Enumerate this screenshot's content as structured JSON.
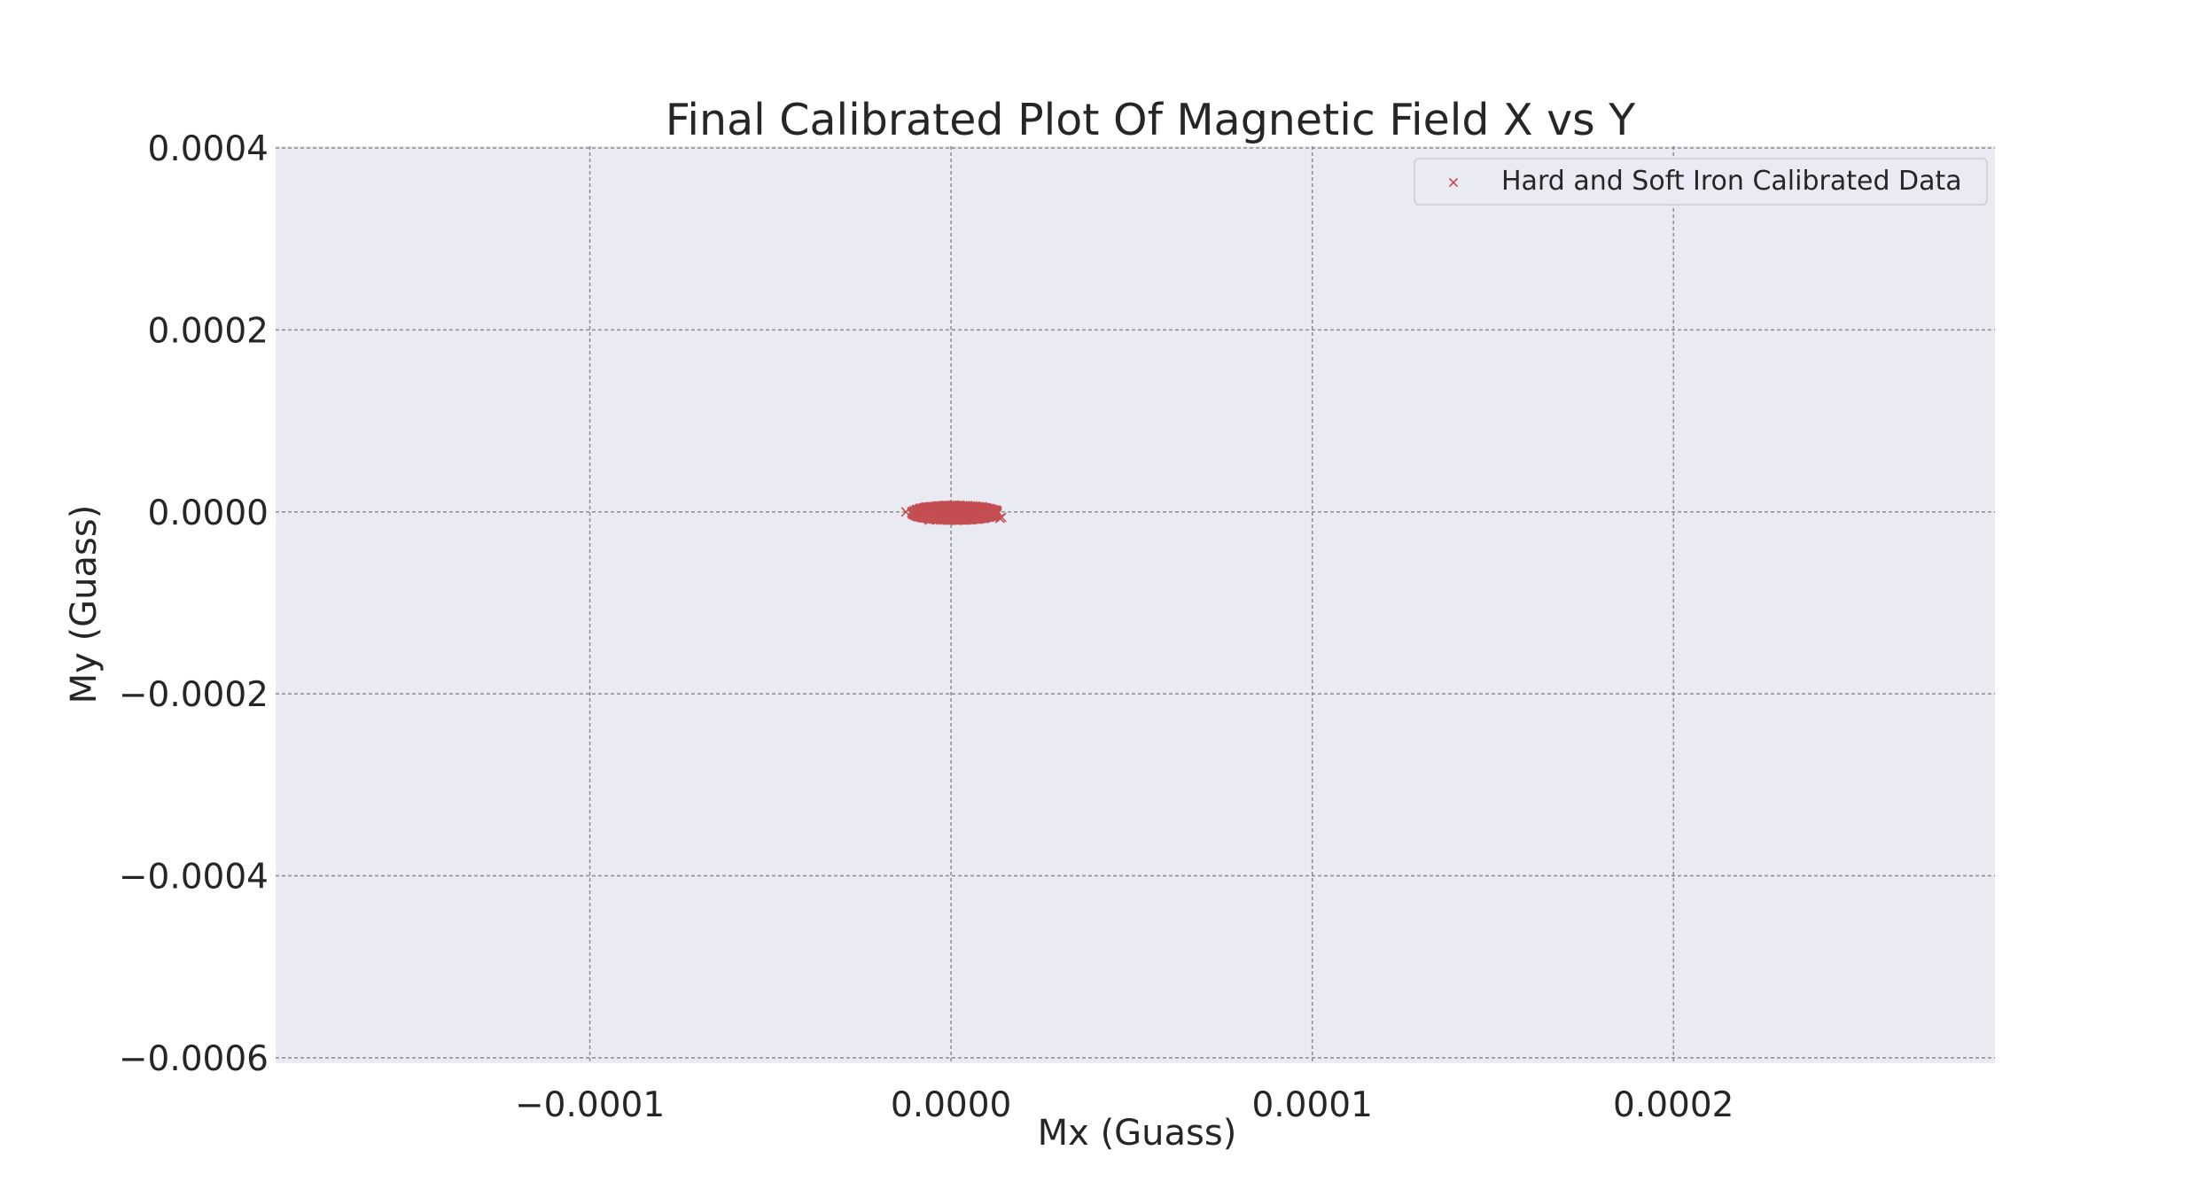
{
  "chart_data": {
    "type": "scatter",
    "title": "Final Calibrated Plot Of Magnetic Field X vs Y",
    "xlabel": "Mx (Guass)",
    "ylabel": "My (Guass)",
    "xlim": [
      -0.000187,
      0.000289
    ],
    "ylim": [
      -0.000606,
      0.000402
    ],
    "xticks": [
      -0.0001,
      0.0,
      0.0001,
      0.0002
    ],
    "xtick_labels": [
      "−0.0001",
      "0.0000",
      "0.0001",
      "0.0002"
    ],
    "yticks": [
      0.0004,
      0.0002,
      0.0,
      -0.0002,
      -0.0004,
      -0.0006
    ],
    "ytick_labels": [
      "0.0004",
      "0.0002",
      "0.0000",
      "−0.0002",
      "−0.0004",
      "−0.0006"
    ],
    "grid": true,
    "legend_position": "upper right",
    "marker": "x",
    "series": [
      {
        "name": "Hard and Soft Iron Calibrated Data",
        "color": "#c44e52",
        "center": [
          1e-06,
          -1e-06
        ],
        "radius": [
          1.2e-05,
          8.5e-06
        ],
        "points": [
          [
            -1.25e-05,
            0.0
          ],
          [
            1.25e-05,
            2e-06
          ],
          [
            1.35e-05,
            -7e-06
          ],
          [
            1.4e-05,
            -6e-06
          ],
          [
            -6e-06,
            -9e-06
          ]
        ]
      }
    ]
  }
}
